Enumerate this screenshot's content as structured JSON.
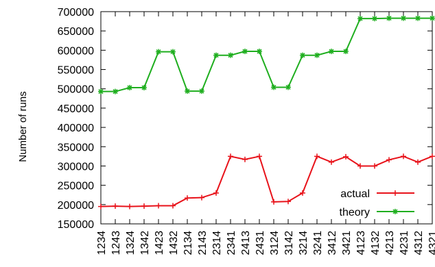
{
  "chart_data": {
    "type": "line",
    "xlabel": "",
    "ylabel": "Number of runs",
    "ylim": [
      150000,
      700000
    ],
    "yticks": [
      150000,
      200000,
      250000,
      300000,
      350000,
      400000,
      450000,
      500000,
      550000,
      600000,
      650000,
      700000
    ],
    "categories": [
      "1234",
      "1243",
      "1324",
      "1342",
      "1423",
      "1432",
      "2134",
      "2143",
      "2314",
      "2341",
      "2413",
      "2431",
      "3124",
      "3142",
      "3214",
      "3241",
      "3412",
      "3421",
      "4123",
      "4132",
      "4213",
      "4231",
      "4312",
      "4321"
    ],
    "grid": false,
    "legend_position": "bottom-right",
    "series": [
      {
        "name": "actual",
        "color": "#e8121a",
        "marker": "plus",
        "values": [
          195000,
          196000,
          195000,
          196000,
          197000,
          197000,
          217000,
          218000,
          230000,
          325000,
          317000,
          325000,
          207000,
          208000,
          230000,
          325000,
          310000,
          324000,
          300000,
          300000,
          316000,
          325000,
          310000,
          325000
        ]
      },
      {
        "name": "theory",
        "color": "#1eae1e",
        "marker": "star",
        "values": [
          493000,
          493000,
          503000,
          503000,
          596000,
          596000,
          494000,
          494000,
          587000,
          587000,
          597000,
          597000,
          504000,
          504000,
          587000,
          587000,
          597000,
          597000,
          682000,
          682000,
          683000,
          683000,
          683000,
          683000
        ]
      }
    ]
  }
}
